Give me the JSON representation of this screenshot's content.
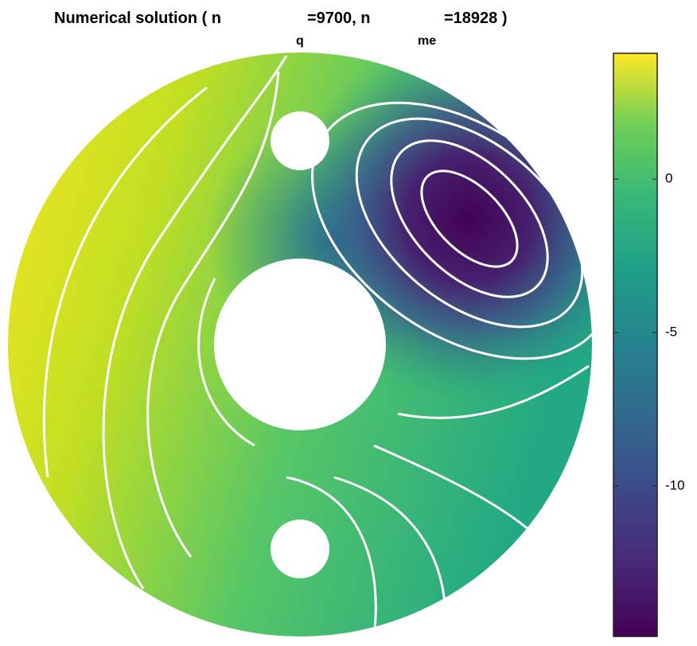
{
  "chart_data": {
    "type": "contour",
    "title": [
      "Numerical solution ( n",
      "q",
      "=9700, n",
      "me",
      "=18928 )"
    ],
    "colormap": "viridis",
    "clim": [
      -14.9,
      4.1
    ],
    "cticks": [
      -10,
      -5,
      0
    ]
  }
}
